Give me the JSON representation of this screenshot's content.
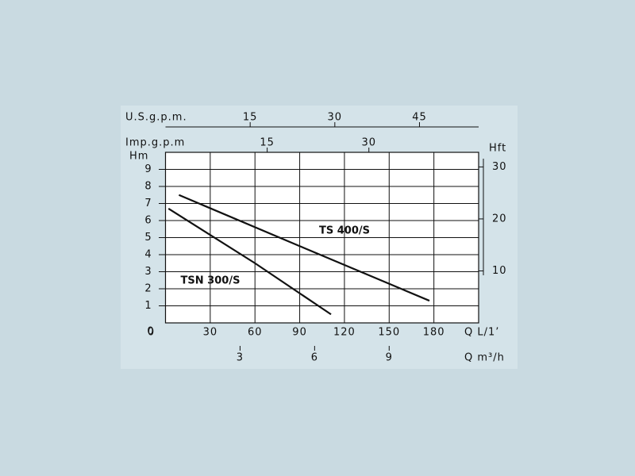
{
  "chart_data": {
    "type": "line",
    "x_label": "Q L/1’",
    "xlim": [
      0,
      210
    ],
    "xticks": [
      0,
      30,
      60,
      90,
      120,
      150,
      180
    ],
    "grid": true,
    "x2_label": "Q m³/h",
    "x2lim": [
      0,
      12.6
    ],
    "x2ticks": [
      3,
      6,
      9
    ],
    "x3_label": "U.S.g.p.m.",
    "x3lim": [
      0,
      55.48
    ],
    "x3ticks": [
      15,
      30,
      45
    ],
    "x4_label": "Imp.g.p.m",
    "x4lim": [
      0,
      46.19
    ],
    "x4ticks": [
      15,
      30
    ],
    "y_label": "Hm",
    "ylim": [
      0,
      10
    ],
    "yticks": [
      0,
      1,
      2,
      3,
      4,
      5,
      6,
      7,
      8,
      9
    ],
    "y2_label": "Hft",
    "y2lim": [
      0,
      32.81
    ],
    "y2ticks": [
      10,
      20,
      30
    ],
    "series": [
      {
        "name": "TSN 300/S",
        "color": "#111111",
        "x": [
          2,
          60,
          111
        ],
        "values": [
          6.7,
          3.5,
          0.5
        ]
      },
      {
        "name": "TS 400/S",
        "color": "#111111",
        "x": [
          9,
          90,
          177
        ],
        "values": [
          7.5,
          4.5,
          1.3
        ]
      }
    ]
  }
}
